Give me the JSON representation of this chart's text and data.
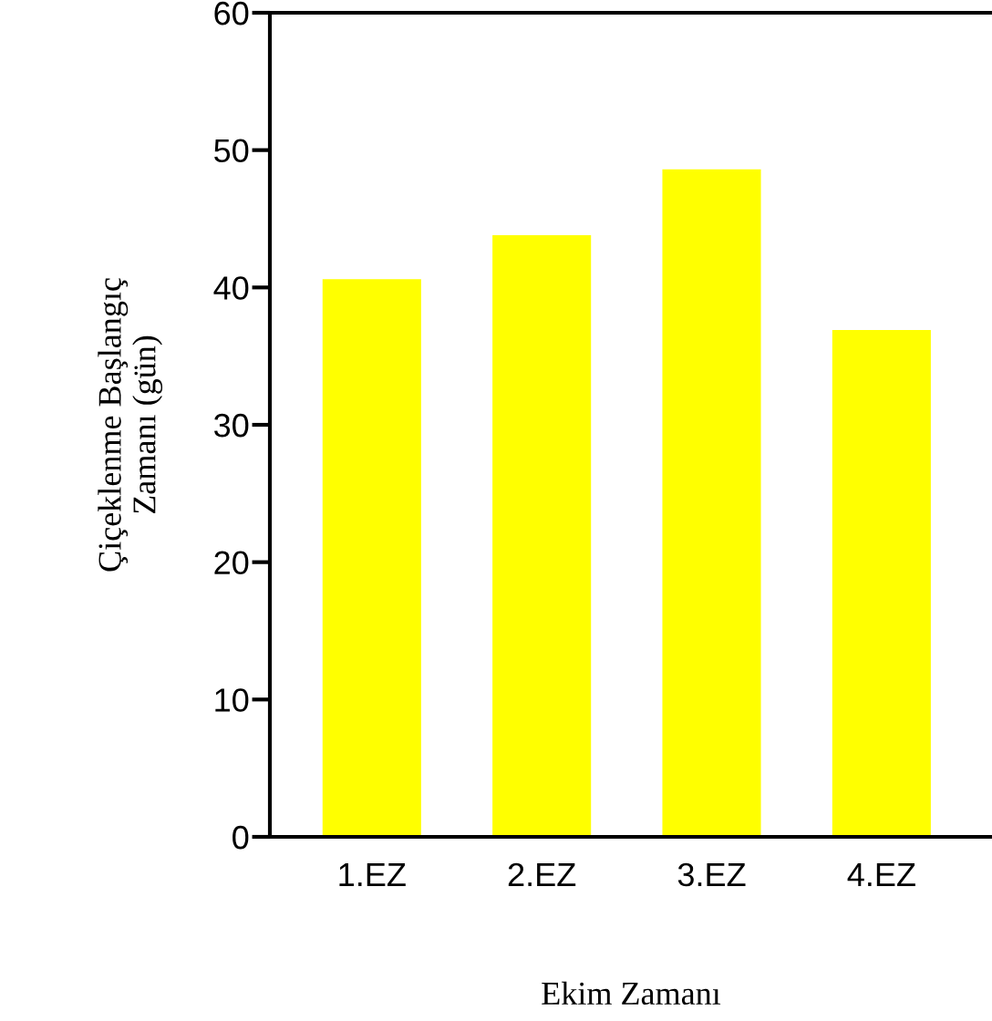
{
  "chart_data": {
    "type": "bar",
    "xlabel": "Ekim Zamanı",
    "ylabel": "Çiçeklenme Başlangıç\nZamanı (gün)",
    "categories": [
      "1.EZ",
      "2.EZ",
      "3.EZ",
      "4.EZ"
    ],
    "values": [
      40.6,
      43.8,
      48.6,
      36.9
    ],
    "color": "#ffff00",
    "ylim": [
      0,
      60
    ],
    "yticks": [
      0,
      10,
      20,
      30,
      40,
      50,
      60
    ],
    "grid": false,
    "legend": false
  }
}
